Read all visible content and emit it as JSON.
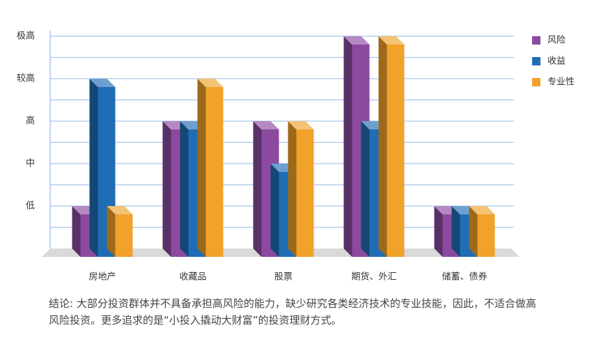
{
  "chart_data": {
    "type": "bar3d",
    "categories": [
      "房地产",
      "收藏品",
      "股票",
      "期货、外汇",
      "储蓄、债券"
    ],
    "series": [
      {
        "name": "风险",
        "color": "#8b4aa0",
        "values": [
          1,
          3,
          3,
          5,
          1
        ]
      },
      {
        "name": "收益",
        "color": "#1f6db5",
        "values": [
          4,
          3,
          2,
          3,
          1
        ]
      },
      {
        "name": "专业性",
        "color": "#f0a22a",
        "values": [
          1,
          4,
          3,
          5,
          1
        ]
      }
    ],
    "ylim": [
      0,
      5
    ],
    "yticks": [
      {
        "value": 1,
        "label": "低"
      },
      {
        "value": 2,
        "label": "中"
      },
      {
        "value": 3,
        "label": "高"
      },
      {
        "value": 4,
        "label": "较高"
      },
      {
        "value": 5,
        "label": "极高"
      }
    ],
    "minor_gridlines": [
      0.5,
      1.5,
      2.5,
      3.5,
      4.5
    ],
    "grid": true,
    "legend": "right",
    "caption": "结论: 大部分投资群体并不具备承担高风险的能力，缺少研究各类经济技术的专业技能，因此，不适合做高风险投资。更多追求的是“小投入撬动大财富”的投资理财方式。"
  }
}
